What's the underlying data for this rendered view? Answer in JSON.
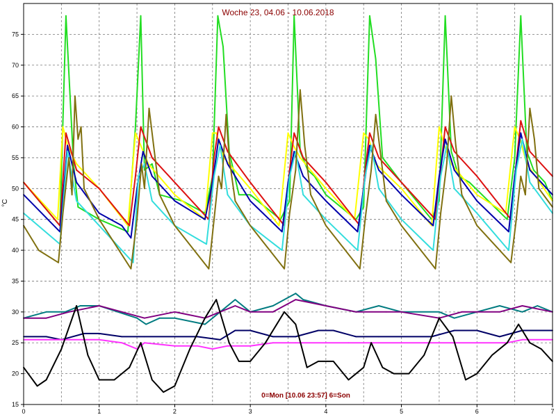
{
  "chart_data": {
    "type": "line",
    "title": "Woche 23, 04.06 - 10.06.2018",
    "ylabel": "°C",
    "xlabel": "0=Mon [10.06 23:57] 6=Son",
    "xlim": [
      0,
      7
    ],
    "ylim": [
      15,
      80
    ],
    "grid": true,
    "x_ticks": [
      "0",
      "1",
      "2",
      "3",
      "4",
      "5",
      "6",
      "7"
    ],
    "y_ticks": [
      "15",
      "20",
      "25",
      "30",
      "35",
      "40",
      "45",
      "50",
      "55",
      "60",
      "65",
      "70",
      "75"
    ],
    "series": [
      {
        "color": "#22dd22",
        "x": [
          0,
          0.48,
          0.56,
          0.66,
          0.72,
          1.0,
          1.38,
          1.48,
          1.55,
          1.6,
          1.7,
          1.8,
          2.1,
          2.4,
          2.5,
          2.57,
          2.64,
          2.72,
          2.85,
          3.0,
          3.4,
          3.52,
          3.58,
          3.66,
          3.76,
          3.85,
          4.0,
          4.4,
          4.5,
          4.58,
          4.66,
          4.75,
          5.0,
          5.4,
          5.5,
          5.58,
          5.66,
          5.76,
          5.9,
          6.4,
          6.5,
          6.58,
          6.66,
          6.75,
          6.9,
          7.0
        ],
        "y": [
          51,
          44,
          78,
          54,
          47,
          45,
          43,
          60,
          78,
          53,
          54,
          49,
          48,
          46,
          52,
          78,
          73,
          56,
          49,
          49,
          45,
          48,
          78,
          56,
          53,
          52,
          49,
          45,
          47,
          78,
          71,
          55,
          51,
          45,
          48,
          78,
          56,
          52,
          51,
          45,
          55,
          78,
          56,
          53,
          51,
          48
        ]
      },
      {
        "color": "#ffff00",
        "x": [
          0,
          0.45,
          0.52,
          0.58,
          0.7,
          1.0,
          1.38,
          1.48,
          1.55,
          1.65,
          2.0,
          2.4,
          2.5,
          2.55,
          2.65,
          3.0,
          3.38,
          3.5,
          3.57,
          3.66,
          4.0,
          4.38,
          4.5,
          4.57,
          4.66,
          5.0,
          5.4,
          5.5,
          5.57,
          5.66,
          6.0,
          6.38,
          6.5,
          6.57,
          6.66,
          7.0
        ],
        "y": [
          51,
          45,
          60,
          57,
          54,
          50,
          44,
          59,
          57,
          54,
          49,
          45,
          59,
          59,
          55,
          50,
          44,
          59,
          57,
          55,
          50,
          45,
          59,
          58,
          54,
          50,
          44,
          60,
          57,
          54,
          49,
          46,
          60,
          58,
          54,
          48
        ]
      },
      {
        "color": "#dd1111",
        "x": [
          0,
          0.48,
          0.56,
          0.7,
          1.0,
          1.4,
          1.48,
          1.55,
          1.7,
          2.0,
          2.45,
          2.52,
          2.58,
          2.7,
          3.0,
          3.45,
          3.52,
          3.58,
          3.7,
          4.0,
          4.45,
          4.52,
          4.58,
          4.7,
          5.0,
          5.45,
          5.52,
          5.58,
          5.7,
          6.0,
          6.45,
          6.52,
          6.58,
          6.7,
          7.0
        ],
        "y": [
          51,
          44,
          59,
          53,
          50,
          44,
          52,
          60,
          55,
          51,
          45,
          55,
          60,
          56,
          51,
          44,
          53,
          59,
          55,
          51,
          44,
          53,
          59,
          55,
          51,
          45,
          53,
          60,
          56,
          52,
          45,
          54,
          61,
          56,
          52
        ]
      },
      {
        "color": "#0000aa",
        "x": [
          0,
          0.48,
          0.58,
          0.7,
          1.0,
          1.3,
          1.42,
          1.5,
          1.58,
          1.7,
          2.0,
          2.4,
          2.5,
          2.58,
          2.7,
          3.0,
          3.42,
          3.5,
          3.58,
          3.7,
          4.0,
          4.42,
          4.5,
          4.58,
          4.7,
          5.0,
          5.42,
          5.5,
          5.58,
          5.7,
          6.0,
          6.42,
          6.5,
          6.58,
          6.7,
          7.0
        ],
        "y": [
          49,
          43,
          57,
          51,
          46,
          44,
          42,
          50,
          56,
          52,
          48,
          45,
          51,
          58,
          54,
          48,
          43,
          51,
          56,
          52,
          48,
          43,
          50,
          57,
          53,
          49,
          44,
          52,
          58,
          53,
          48,
          43,
          52,
          59,
          53,
          49
        ]
      },
      {
        "color": "#33dddd",
        "x": [
          0,
          0.48,
          0.58,
          0.7,
          1.0,
          1.3,
          1.45,
          1.52,
          1.6,
          1.7,
          2.0,
          2.42,
          2.52,
          2.6,
          2.7,
          3.0,
          3.42,
          3.52,
          3.6,
          3.7,
          4.0,
          4.42,
          4.52,
          4.6,
          4.7,
          5.0,
          5.42,
          5.52,
          5.6,
          5.7,
          6.0,
          6.42,
          6.52,
          6.6,
          6.7,
          7.0
        ],
        "y": [
          46,
          41,
          56,
          48,
          44,
          40,
          38,
          52,
          54,
          48,
          44,
          41,
          52,
          57,
          49,
          44,
          40,
          52,
          56,
          49,
          45,
          40,
          52,
          57,
          50,
          45,
          40,
          52,
          57,
          50,
          46,
          40,
          53,
          58,
          51,
          46
        ]
      },
      {
        "color": "#807010",
        "x": [
          0,
          0.2,
          0.46,
          0.52,
          0.6,
          0.64,
          0.68,
          0.72,
          0.76,
          0.8,
          1.0,
          1.42,
          1.5,
          1.56,
          1.6,
          1.66,
          1.72,
          1.8,
          2.0,
          2.45,
          2.52,
          2.58,
          2.62,
          2.68,
          2.72,
          2.8,
          3.0,
          3.45,
          3.52,
          3.6,
          3.66,
          3.72,
          3.8,
          4.0,
          4.45,
          4.52,
          4.6,
          4.66,
          4.72,
          4.8,
          5.0,
          5.45,
          5.52,
          5.6,
          5.66,
          5.72,
          5.8,
          6.0,
          6.45,
          6.52,
          6.58,
          6.64,
          6.7,
          6.76,
          6.82,
          7.0
        ],
        "y": [
          44,
          40,
          38,
          46,
          55,
          49,
          65,
          58,
          60,
          50,
          45,
          37,
          45,
          54,
          50,
          63,
          57,
          49,
          44,
          37,
          45,
          52,
          50,
          62,
          55,
          48,
          44,
          37,
          46,
          53,
          66,
          57,
          49,
          44,
          37,
          45,
          53,
          62,
          56,
          48,
          44,
          37,
          46,
          54,
          65,
          57,
          49,
          44,
          38,
          45,
          52,
          49,
          63,
          58,
          50,
          47
        ]
      },
      {
        "color": "#007b80",
        "x": [
          0,
          0.3,
          0.55,
          0.75,
          1.0,
          1.5,
          1.62,
          1.8,
          2.0,
          2.4,
          2.6,
          2.8,
          3.0,
          3.3,
          3.6,
          3.7,
          4.0,
          4.4,
          4.7,
          5.0,
          5.5,
          5.7,
          6.0,
          6.3,
          6.6,
          6.8,
          7.0
        ],
        "y": [
          29,
          30,
          30,
          31,
          31,
          29,
          28,
          29,
          29,
          28,
          30,
          32,
          30,
          31,
          33,
          32,
          31,
          30,
          31,
          30,
          30,
          29,
          30,
          31,
          30,
          31,
          30
        ]
      },
      {
        "color": "#800080",
        "x": [
          0,
          0.3,
          0.6,
          1.0,
          1.3,
          1.6,
          2.0,
          2.4,
          2.6,
          2.8,
          3.0,
          3.3,
          3.6,
          4.0,
          4.4,
          4.8,
          5.0,
          5.5,
          5.8,
          6.0,
          6.3,
          6.6,
          7.0
        ],
        "y": [
          29,
          29,
          30,
          31,
          30,
          29,
          30,
          29,
          30,
          31,
          30,
          30,
          32,
          31,
          30,
          30,
          30,
          29,
          30,
          30,
          30,
          31,
          30
        ]
      },
      {
        "color": "#000066",
        "x": [
          0,
          0.3,
          0.5,
          0.8,
          1.0,
          1.3,
          1.6,
          2.0,
          2.3,
          2.6,
          2.8,
          3.0,
          3.3,
          3.6,
          3.9,
          4.1,
          4.4,
          4.7,
          5.0,
          5.4,
          5.7,
          6.0,
          6.3,
          6.6,
          7.0
        ],
        "y": [
          26,
          26,
          25.5,
          26.5,
          26.5,
          26,
          26,
          26,
          26,
          25.5,
          27,
          27,
          26,
          26,
          27,
          27,
          26,
          26,
          26,
          26,
          27,
          27,
          26,
          27,
          27
        ]
      },
      {
        "color": "#ff33ff",
        "x": [
          0,
          0.3,
          0.6,
          1.0,
          1.3,
          1.5,
          1.6,
          2.0,
          2.3,
          2.5,
          2.7,
          3.0,
          3.3,
          3.6,
          4.0,
          4.3,
          4.5,
          4.7,
          5.0,
          5.3,
          5.5,
          5.7,
          6.0,
          6.4,
          6.6,
          7.0
        ],
        "y": [
          25.5,
          25.5,
          25.5,
          25.5,
          25,
          24,
          25,
          24.5,
          24.5,
          24,
          24.5,
          24.5,
          25,
          25,
          25,
          25,
          25,
          25,
          25,
          25,
          25,
          25,
          25,
          25,
          25.5,
          25.5
        ]
      },
      {
        "color": "#000000",
        "x": [
          0,
          0.18,
          0.3,
          0.5,
          0.7,
          0.85,
          1.0,
          1.2,
          1.4,
          1.55,
          1.7,
          1.85,
          2.0,
          2.2,
          2.4,
          2.55,
          2.72,
          2.85,
          3.0,
          3.2,
          3.45,
          3.6,
          3.75,
          3.9,
          4.1,
          4.3,
          4.5,
          4.6,
          4.75,
          4.9,
          5.1,
          5.3,
          5.5,
          5.68,
          5.85,
          6.0,
          6.2,
          6.4,
          6.55,
          6.7,
          6.85,
          7.0
        ],
        "y": [
          21,
          18,
          19,
          24,
          31,
          23,
          19,
          19,
          21,
          25,
          19,
          17,
          18,
          24,
          29,
          32,
          25,
          22,
          22,
          25,
          30,
          28,
          21,
          22,
          22,
          19,
          21,
          25,
          21,
          20,
          20,
          23,
          29,
          26,
          19,
          20,
          23,
          25,
          28,
          25,
          24,
          22
        ]
      }
    ]
  }
}
